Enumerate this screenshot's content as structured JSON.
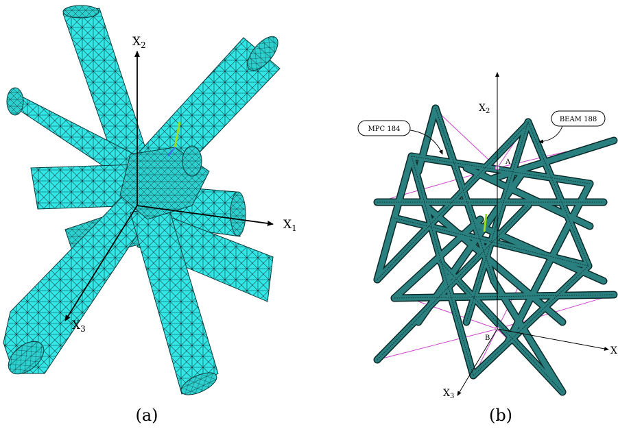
{
  "panel_a": {
    "caption": "(a)",
    "axes": {
      "x1": {
        "main": "X",
        "sub": "1"
      },
      "x2": {
        "main": "X",
        "sub": "2"
      },
      "x3": {
        "main": "X",
        "sub": "3"
      }
    }
  },
  "panel_b": {
    "caption": "(b)",
    "axes": {
      "x1": {
        "main": "X",
        "sub": ""
      },
      "x2": {
        "main": "X",
        "sub": "2"
      },
      "x3": {
        "main": "X",
        "sub": "3"
      }
    },
    "callouts": {
      "mpc": "MPC 184",
      "beam": "BEAM 188"
    },
    "points": {
      "a": "A",
      "b": "B"
    }
  },
  "colors": {
    "mesh_fill": "#33e6e6",
    "mesh_line": "#0b3a3a",
    "beam_fill": "#2a7f7f",
    "beam_line": "#0a2a2a",
    "mpc_line": "#cc44cc",
    "triad_green": "#99dd22"
  }
}
